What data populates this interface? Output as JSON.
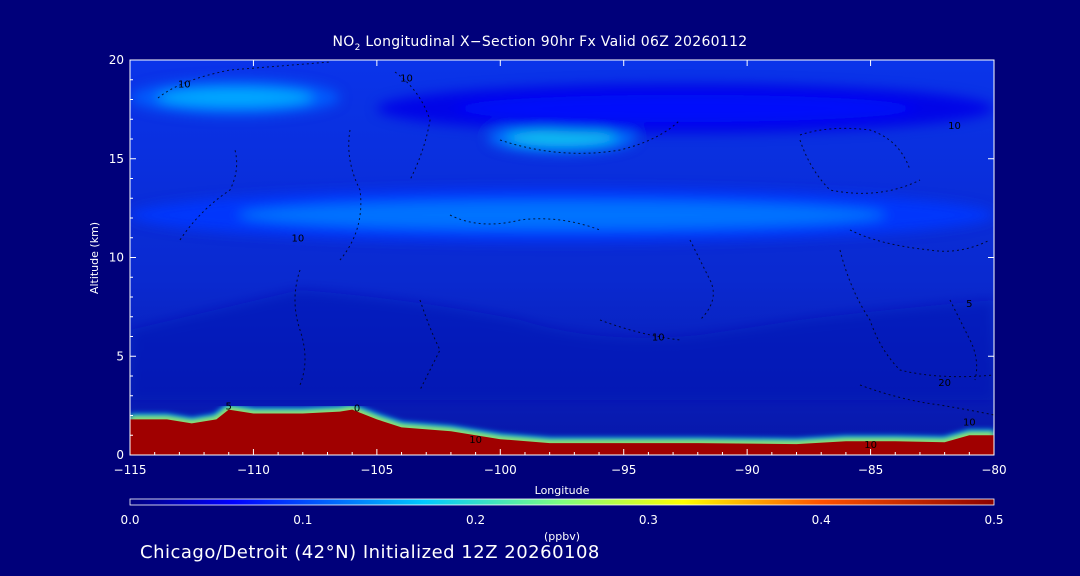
{
  "header": {
    "title_main": "NO",
    "title_sub": "2",
    "title_rest": " Longitudinal X−Section 90hr  Fx Valid 06Z 20260112"
  },
  "footer": {
    "text": "Chicago/Detroit (42°N) Initialized 12Z 20260108"
  },
  "colors": {
    "background": "#00007a",
    "plot_base": "#0a2ad8",
    "terrain": "#a00000"
  },
  "chart_data": {
    "type": "heatmap",
    "xlabel": "Longitude",
    "ylabel": "Altitude (km)",
    "xlim": [
      -115,
      -80
    ],
    "ylim": [
      0,
      20
    ],
    "xticks": [
      -115,
      -110,
      -105,
      -100,
      -95,
      -90,
      -85,
      -80
    ],
    "xtick_labels": [
      "−115",
      "−110",
      "−105",
      "−100",
      "−95",
      "−90",
      "−85",
      "−80"
    ],
    "yticks": [
      0,
      5,
      10,
      15,
      20
    ],
    "colorbar": {
      "label": "(ppbv)",
      "range": [
        0.0,
        0.5
      ],
      "ticks": [
        0.0,
        0.1,
        0.2,
        0.3,
        0.4,
        0.5
      ],
      "tick_labels": [
        "0.0",
        "0.1",
        "0.2",
        "0.3",
        "0.4",
        "0.5"
      ]
    },
    "terrain_km": [
      [
        -115,
        1.8
      ],
      [
        -113.5,
        1.8
      ],
      [
        -112.5,
        1.6
      ],
      [
        -111.5,
        1.8
      ],
      [
        -111,
        2.3
      ],
      [
        -110,
        2.1
      ],
      [
        -108,
        2.1
      ],
      [
        -106.5,
        2.2
      ],
      [
        -106,
        2.3
      ],
      [
        -105,
        1.8
      ],
      [
        -104,
        1.4
      ],
      [
        -102,
        1.2
      ],
      [
        -100,
        0.8
      ],
      [
        -98,
        0.6
      ],
      [
        -95,
        0.6
      ],
      [
        -92,
        0.6
      ],
      [
        -88,
        0.55
      ],
      [
        -86,
        0.7
      ],
      [
        -84,
        0.7
      ],
      [
        -82,
        0.65
      ],
      [
        -81,
        1.0
      ],
      [
        -80,
        1.0
      ]
    ],
    "high_bands": [
      {
        "lon": [
          -115,
          -106.5
        ],
        "alt": [
          17.2,
          19
        ],
        "peak": 0.16
      },
      {
        "lon": [
          -100.5,
          -94.5
        ],
        "alt": [
          15.3,
          16.8
        ],
        "peak": 0.18
      },
      {
        "lon": [
          -115,
          -80
        ],
        "alt": [
          10.8,
          13.5
        ],
        "peak": 0.13
      },
      {
        "lon": [
          -105,
          -80
        ],
        "alt": [
          16.3,
          18.8
        ],
        "peak": 0.07
      }
    ],
    "contours": [
      {
        "label": "10",
        "lon": -112.8,
        "alt": 18.6
      },
      {
        "label": "10",
        "lon": -103.8,
        "alt": 18.9
      },
      {
        "label": "10",
        "lon": -81.6,
        "alt": 16.5
      },
      {
        "label": "10",
        "lon": -108.2,
        "alt": 10.8
      },
      {
        "label": "10",
        "lon": -93.6,
        "alt": 5.8
      },
      {
        "label": "10",
        "lon": -101,
        "alt": 0.6
      },
      {
        "label": "10",
        "lon": -85,
        "alt": 0.35
      },
      {
        "label": "10",
        "lon": -81,
        "alt": 1.5
      },
      {
        "label": "20",
        "lon": -82,
        "alt": 3.5
      },
      {
        "label": "5",
        "lon": -81,
        "alt": 7.5
      },
      {
        "label": "5",
        "lon": -111,
        "alt": 2.3
      },
      {
        "label": "0",
        "lon": -105.8,
        "alt": 2.2
      }
    ]
  }
}
